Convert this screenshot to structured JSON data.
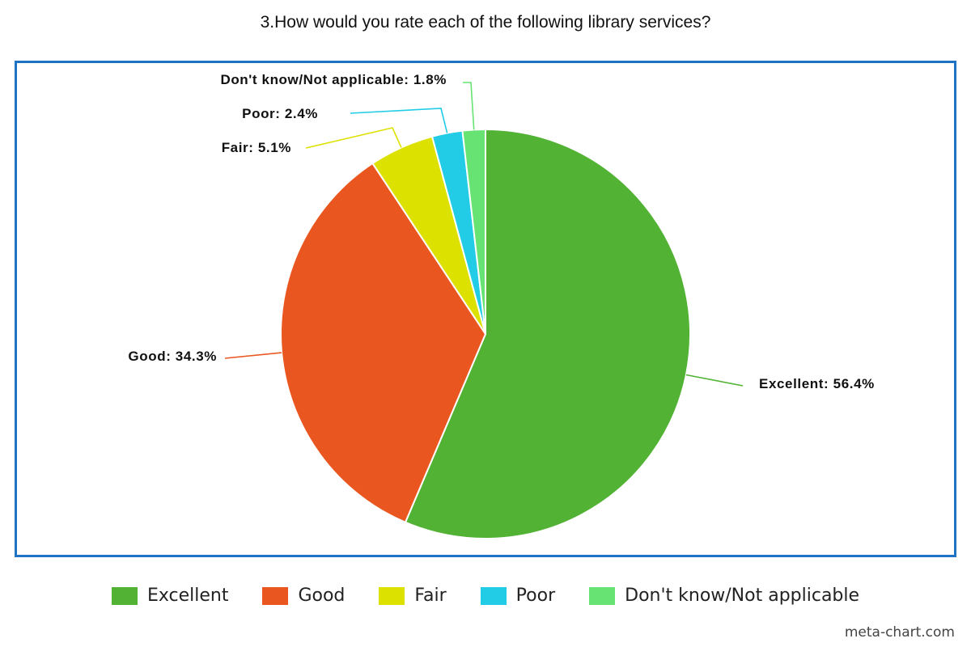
{
  "chart_data": {
    "type": "pie",
    "title": "3.How would you rate each of the following library services?",
    "slices": [
      {
        "label": "Excellent",
        "value": 56.4,
        "color": "#52b234",
        "data_label": "Excellent: 56.4%"
      },
      {
        "label": "Good",
        "value": 34.3,
        "color": "#ea561f",
        "data_label": "Good: 34.3%"
      },
      {
        "label": "Fair",
        "value": 5.1,
        "color": "#dde100",
        "data_label": "Fair: 5.1%"
      },
      {
        "label": "Poor",
        "value": 2.4,
        "color": "#22cce6",
        "data_label": "Poor: 2.4%"
      },
      {
        "label": "Don't know/Not applicable",
        "value": 1.8,
        "color": "#66e373",
        "data_label": "Don't know/Not applicable: 1.8%"
      }
    ],
    "legend_position": "bottom",
    "border_color": "#1f73c4"
  },
  "legend": {
    "items": [
      "Excellent",
      "Good",
      "Fair",
      "Poor",
      "Don't know/Not applicable"
    ]
  },
  "footer": {
    "credit": "meta-chart.com"
  }
}
